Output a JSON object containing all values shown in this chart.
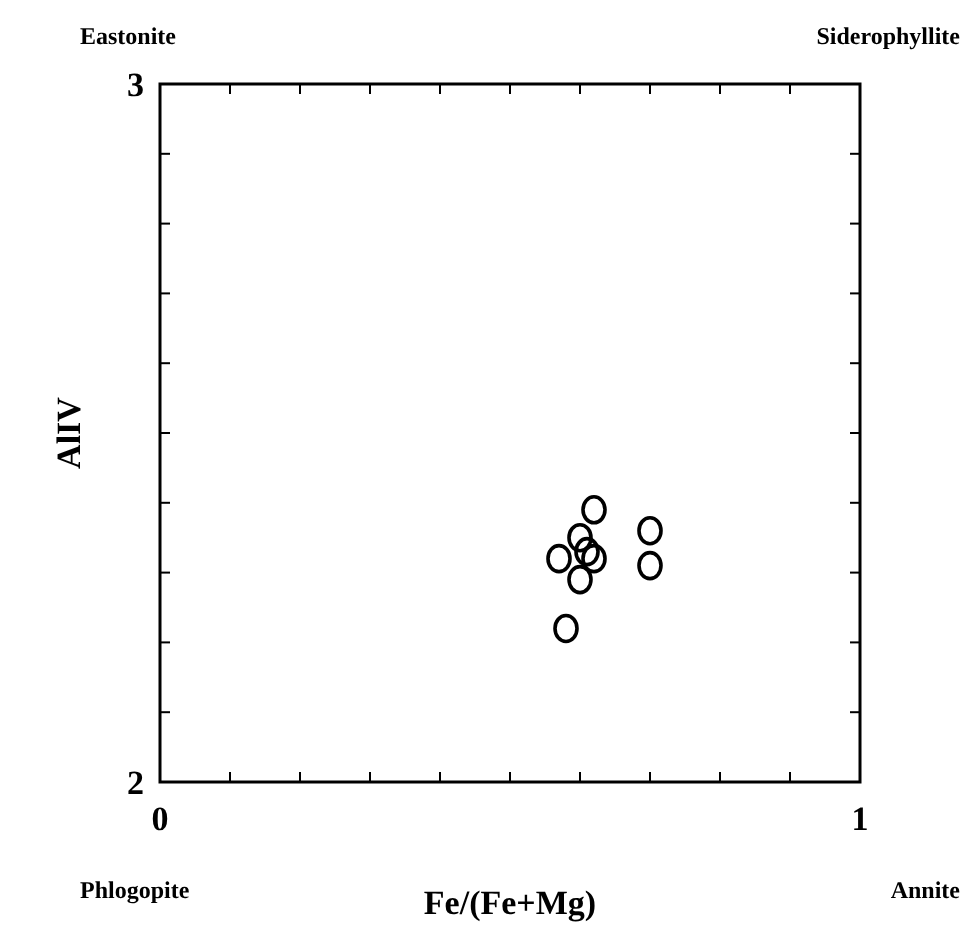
{
  "chart_data": {
    "type": "scatter",
    "xlabel": "Fe/(Fe+Mg)",
    "ylabel": "AlIV",
    "marker": "circle",
    "grid": false,
    "x": [
      0.62,
      0.7,
      0.7,
      0.57,
      0.6,
      0.61,
      0.62,
      0.6,
      0.58
    ],
    "series": [
      {
        "color": "#000000",
        "values": [
          2.39,
          2.36,
          2.31,
          2.32,
          2.35,
          2.33,
          2.32,
          2.29,
          2.22
        ]
      }
    ],
    "xlim": [
      0,
      1
    ],
    "ylim": [
      2,
      3
    ],
    "xticks": [
      0,
      {
        "value": 0.1,
        "label": null
      },
      {
        "value": 0.2,
        "label": null
      },
      {
        "value": 0.3,
        "label": null
      },
      {
        "value": 0.4,
        "label": null
      },
      {
        "value": 0.5,
        "label": null
      },
      {
        "value": 0.6,
        "label": null
      },
      {
        "value": 0.7,
        "label": null
      },
      {
        "value": 0.8,
        "label": null
      },
      {
        "value": 0.9,
        "label": null
      },
      1
    ],
    "yticks": [
      2,
      {
        "value": 2.1,
        "label": null
      },
      {
        "value": 2.2,
        "label": null
      },
      {
        "value": 2.3,
        "label": null
      },
      {
        "value": 2.4,
        "label": null
      },
      {
        "value": 2.5,
        "label": null
      },
      {
        "value": 2.6,
        "label": null
      },
      {
        "value": 2.7,
        "label": null
      },
      {
        "value": 2.8,
        "label": null
      },
      {
        "value": 2.9,
        "label": null
      },
      3
    ],
    "annotations": [
      "Eastonite",
      "Siderophyllite",
      "Phlogopite",
      "Annite"
    ]
  }
}
